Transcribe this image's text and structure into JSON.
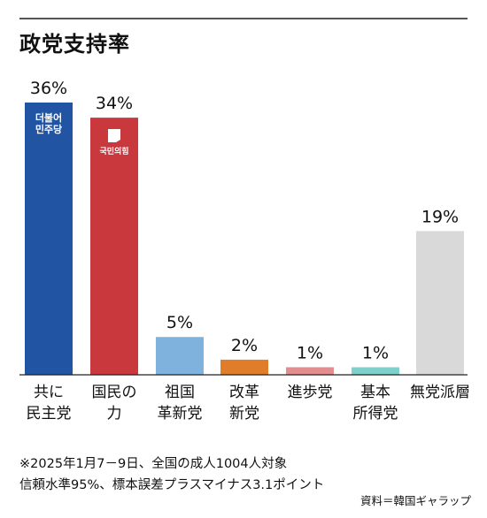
{
  "title": "政党支持率",
  "chart_data": {
    "type": "bar",
    "categories": [
      [
        "共に",
        "民主党"
      ],
      [
        "国民の",
        "力"
      ],
      [
        "祖国",
        "革新党"
      ],
      [
        "改革",
        "新党"
      ],
      [
        "進歩党"
      ],
      [
        "基本",
        "所得党"
      ],
      [
        "無党派層"
      ]
    ],
    "values": [
      36,
      34,
      5,
      2,
      1,
      1,
      19
    ],
    "value_labels": [
      "36%",
      "34%",
      "5%",
      "2%",
      "1%",
      "1%",
      "19%"
    ],
    "colors": [
      "#2155a3",
      "#c8383d",
      "#7fb2dc",
      "#e07d2a",
      "#e28e90",
      "#7ed1cb",
      "#d9d9d9"
    ],
    "ylim": [
      0,
      36
    ],
    "logos": [
      {
        "bar": 0,
        "text": [
          "더불어",
          "민주당"
        ],
        "icon": "party-logo-democratic"
      },
      {
        "bar": 1,
        "text": [
          "국민의힘"
        ],
        "icon": "party-logo-ppp"
      }
    ]
  },
  "note_lines": [
    "※2025年1月7－9日、全国の成人1004人対象",
    "信頼水準95%、標本誤差プラスマイナス3.1ポイント"
  ],
  "source": "資料＝韓国ギャラップ"
}
